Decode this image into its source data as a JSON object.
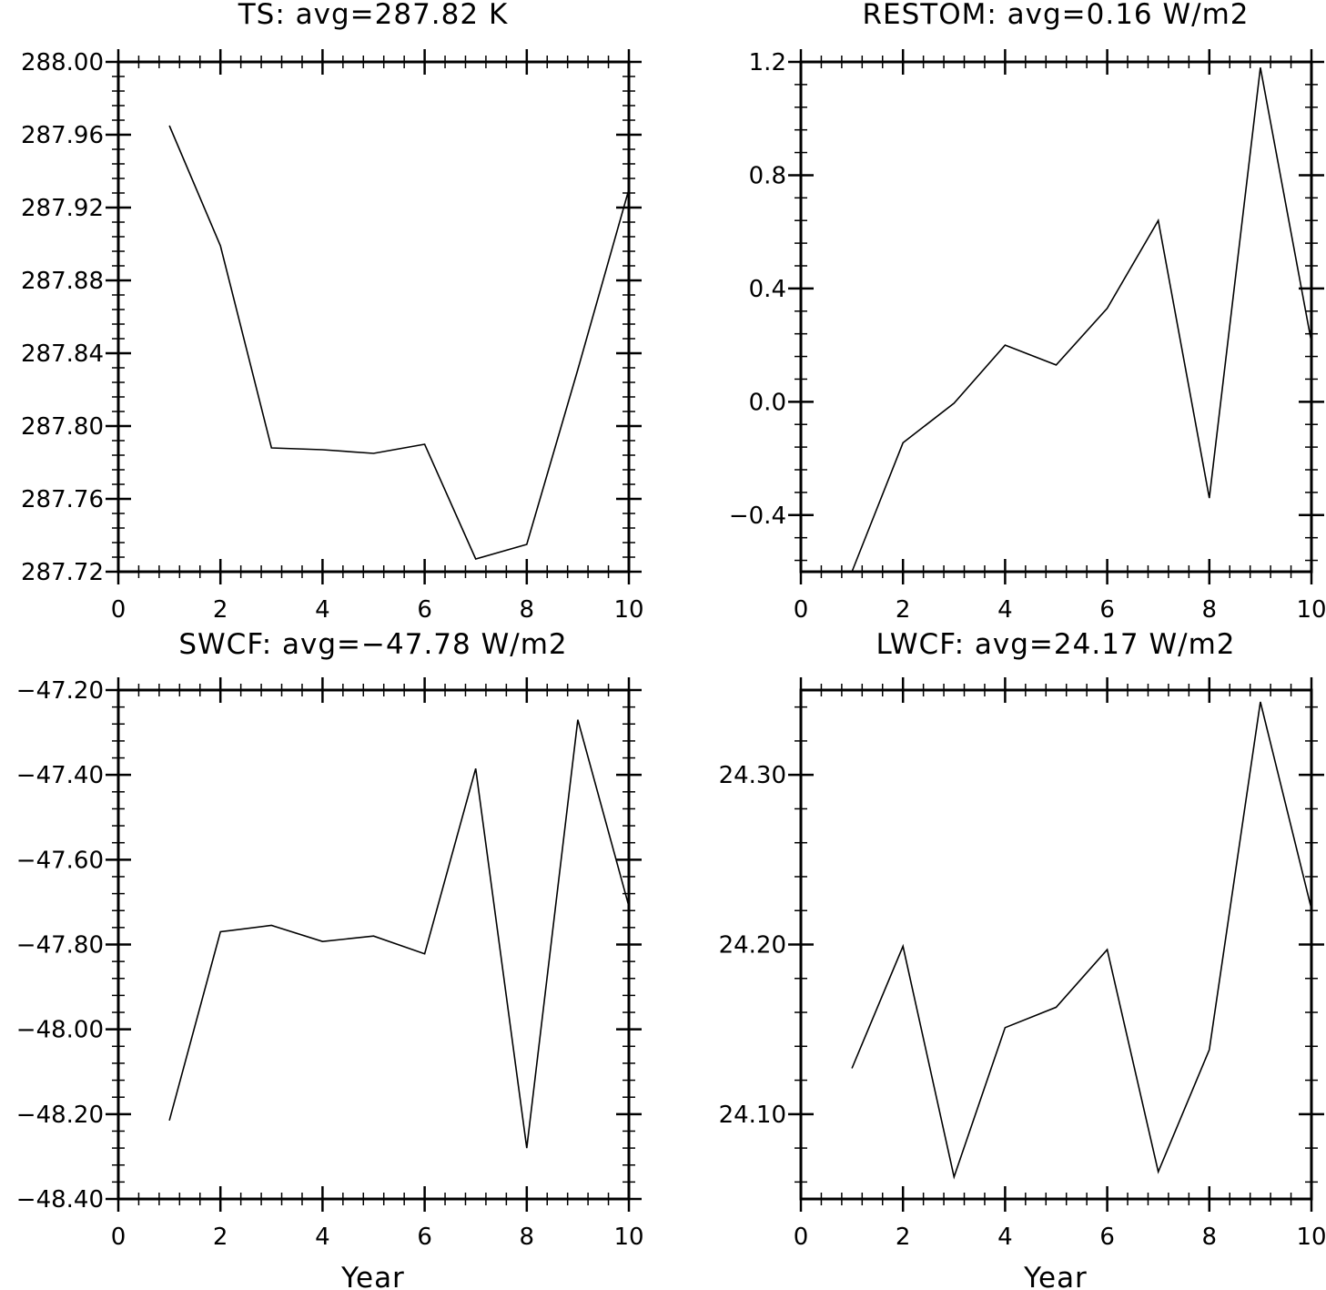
{
  "chart_data": [
    {
      "type": "line",
      "title": "TS: avg=287.82 K",
      "xlabel": "",
      "ylabel": "",
      "xlim": [
        0,
        10
      ],
      "ylim": [
        287.72,
        288.0
      ],
      "x_ticks": [
        0,
        2,
        4,
        6,
        8,
        10
      ],
      "x_tick_labels": [
        "0",
        "2",
        "4",
        "6",
        "8",
        "10"
      ],
      "y_ticks": [
        287.72,
        287.76,
        287.8,
        287.84,
        287.88,
        287.92,
        287.96,
        288.0
      ],
      "y_tick_labels": [
        "287.72",
        "287.76",
        "287.80",
        "287.84",
        "287.88",
        "287.92",
        "287.96",
        "288.00"
      ],
      "y_minor_per_major": 4,
      "x_minor_per_major": 4,
      "grid": false,
      "x": [
        1,
        2,
        3,
        4,
        5,
        6,
        7,
        8,
        9,
        10
      ],
      "values": [
        287.965,
        287.899,
        287.788,
        287.787,
        287.785,
        287.79,
        287.727,
        287.735,
        287.831,
        287.93
      ]
    },
    {
      "type": "line",
      "title": "RESTOM: avg=0.16 W/m2",
      "xlabel": "",
      "ylabel": "",
      "xlim": [
        0,
        10
      ],
      "ylim": [
        -0.6,
        1.2
      ],
      "x_ticks": [
        0,
        2,
        4,
        6,
        8,
        10
      ],
      "x_tick_labels": [
        "0",
        "2",
        "4",
        "6",
        "8",
        "10"
      ],
      "y_ticks": [
        -0.4,
        0.0,
        0.4,
        0.8,
        1.2
      ],
      "y_tick_labels": [
        "−0.4",
        "0.0",
        "0.4",
        "0.8",
        "1.2"
      ],
      "y_minor_per_major": 4,
      "x_minor_per_major": 4,
      "grid": false,
      "x": [
        1,
        2,
        3,
        4,
        5,
        6,
        7,
        8,
        9,
        10
      ],
      "values": [
        -0.6,
        -0.145,
        -0.005,
        0.2,
        0.13,
        0.33,
        0.64,
        -0.34,
        1.18,
        0.21
      ]
    },
    {
      "type": "line",
      "title": "SWCF: avg=−47.78 W/m2",
      "xlabel": "Year",
      "ylabel": "",
      "xlim": [
        0,
        10
      ],
      "ylim": [
        -48.4,
        -47.2
      ],
      "x_ticks": [
        0,
        2,
        4,
        6,
        8,
        10
      ],
      "x_tick_labels": [
        "0",
        "2",
        "4",
        "6",
        "8",
        "10"
      ],
      "y_ticks": [
        -48.4,
        -48.2,
        -48.0,
        -47.8,
        -47.6,
        -47.4,
        -47.2
      ],
      "y_tick_labels": [
        "−48.40",
        "−48.20",
        "−48.00",
        "−47.80",
        "−47.60",
        "−47.40",
        "−47.20"
      ],
      "y_minor_per_major": 4,
      "x_minor_per_major": 4,
      "grid": false,
      "x": [
        1,
        2,
        3,
        4,
        5,
        6,
        7,
        8,
        9,
        10
      ],
      "values": [
        -48.215,
        -47.77,
        -47.755,
        -47.793,
        -47.78,
        -47.822,
        -47.385,
        -48.28,
        -47.27,
        -47.71
      ]
    },
    {
      "type": "line",
      "title": "LWCF: avg=24.17 W/m2",
      "xlabel": "Year",
      "ylabel": "",
      "xlim": [
        0,
        10
      ],
      "ylim": [
        24.05,
        24.35
      ],
      "x_ticks": [
        0,
        2,
        4,
        6,
        8,
        10
      ],
      "x_tick_labels": [
        "0",
        "2",
        "4",
        "6",
        "8",
        "10"
      ],
      "y_ticks": [
        24.1,
        24.2,
        24.3
      ],
      "y_tick_labels": [
        "24.10",
        "24.20",
        "24.30"
      ],
      "y_minor_per_major": 4,
      "x_minor_per_major": 4,
      "grid": false,
      "x": [
        1,
        2,
        3,
        4,
        5,
        6,
        7,
        8,
        9,
        10
      ],
      "values": [
        24.127,
        24.199,
        24.063,
        24.151,
        24.163,
        24.197,
        24.066,
        24.138,
        24.343,
        24.221
      ]
    }
  ]
}
